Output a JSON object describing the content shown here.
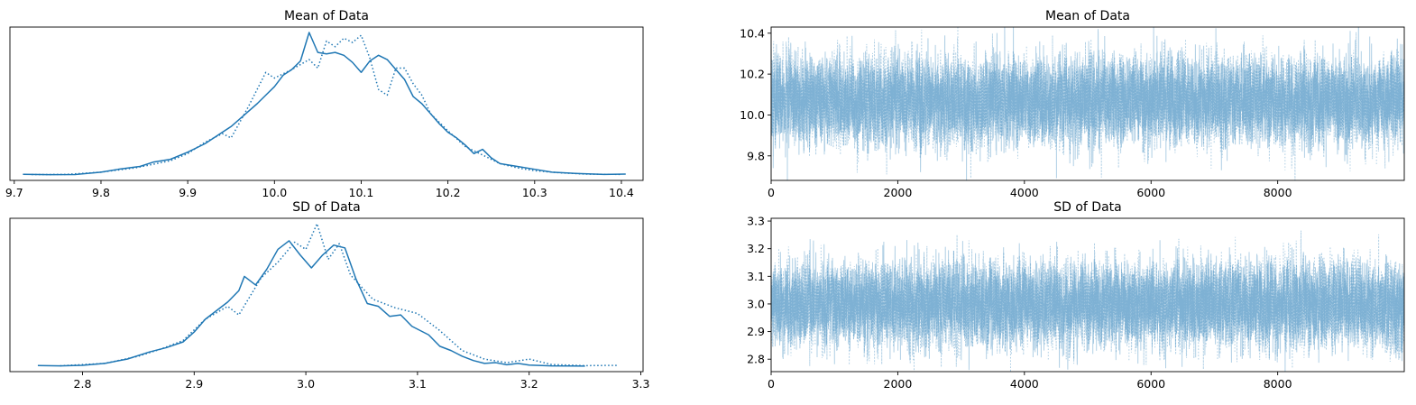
{
  "chart_data": [
    {
      "type": "line",
      "plot": "density",
      "title": "Mean of Data",
      "xlabel": "",
      "ylabel": "",
      "xlim": [
        9.695,
        10.425
      ],
      "xticks": [
        9.7,
        9.8,
        9.9,
        10.0,
        10.1,
        10.2,
        10.3,
        10.4
      ],
      "xtick_labels": [
        "9.7",
        "9.8",
        "9.9",
        "10.0",
        "10.1",
        "10.2",
        "10.3",
        "10.4"
      ],
      "yticks_visible": false,
      "color": "#1f77b4",
      "series": [
        {
          "line_style": "solid",
          "x": [
            9.71,
            9.74,
            9.77,
            9.8,
            9.82,
            9.845,
            9.86,
            9.88,
            9.9,
            9.92,
            9.935,
            9.95,
            9.965,
            9.98,
            9.99,
            10.0,
            10.01,
            10.02,
            10.03,
            10.04,
            10.05,
            10.06,
            10.07,
            10.08,
            10.09,
            10.1,
            10.11,
            10.12,
            10.13,
            10.14,
            10.15,
            10.16,
            10.17,
            10.18,
            10.19,
            10.2,
            10.21,
            10.22,
            10.23,
            10.24,
            10.25,
            10.26,
            10.28,
            10.3,
            10.32,
            10.35,
            10.38,
            10.405
          ],
          "y": [
            0.005,
            0.002,
            0.003,
            0.02,
            0.04,
            0.06,
            0.09,
            0.11,
            0.16,
            0.22,
            0.28,
            0.34,
            0.42,
            0.5,
            0.56,
            0.62,
            0.7,
            0.74,
            0.8,
            1.0,
            0.86,
            0.85,
            0.86,
            0.84,
            0.79,
            0.72,
            0.8,
            0.84,
            0.81,
            0.74,
            0.67,
            0.55,
            0.5,
            0.43,
            0.36,
            0.3,
            0.26,
            0.21,
            0.15,
            0.18,
            0.12,
            0.08,
            0.06,
            0.04,
            0.02,
            0.01,
            0.004,
            0.006
          ]
        },
        {
          "line_style": "dotted",
          "x": [
            9.72,
            9.76,
            9.8,
            9.84,
            9.88,
            9.9,
            9.92,
            9.94,
            9.95,
            9.97,
            9.99,
            10.0,
            10.02,
            10.04,
            10.05,
            10.06,
            10.07,
            10.08,
            10.09,
            10.1,
            10.11,
            10.12,
            10.13,
            10.14,
            10.15,
            10.16,
            10.17,
            10.18,
            10.2,
            10.22,
            10.24,
            10.26,
            10.28,
            10.3,
            10.33,
            10.36,
            10.4
          ],
          "y": [
            0.003,
            0.004,
            0.02,
            0.05,
            0.1,
            0.15,
            0.23,
            0.29,
            0.26,
            0.48,
            0.72,
            0.68,
            0.74,
            0.81,
            0.75,
            0.94,
            0.9,
            0.96,
            0.93,
            0.98,
            0.82,
            0.6,
            0.56,
            0.75,
            0.75,
            0.64,
            0.56,
            0.43,
            0.31,
            0.2,
            0.14,
            0.08,
            0.05,
            0.03,
            0.015,
            0.006,
            0.004
          ]
        }
      ]
    },
    {
      "type": "line",
      "plot": "trace",
      "title": "Mean of Data",
      "xlabel": "",
      "ylabel": "",
      "xlim": [
        0,
        9999
      ],
      "ylim": [
        9.68,
        10.43
      ],
      "xticks": [
        0,
        2000,
        4000,
        6000,
        8000
      ],
      "xtick_labels": [
        "0",
        "2000",
        "4000",
        "6000",
        "8000"
      ],
      "yticks": [
        9.8,
        10.0,
        10.2,
        10.4
      ],
      "ytick_labels": [
        "9.8",
        "10.0",
        "10.2",
        "10.4"
      ],
      "color": "#1f77b4",
      "alpha": 0.35,
      "samples": 10000,
      "series": [
        {
          "line_style": "solid",
          "mean": 10.07,
          "sd": 0.1
        },
        {
          "line_style": "dotted",
          "mean": 10.07,
          "sd": 0.1
        }
      ]
    },
    {
      "type": "line",
      "plot": "density",
      "title": "SD of Data",
      "xlabel": "",
      "ylabel": "",
      "xlim": [
        2.735,
        3.302
      ],
      "xticks": [
        2.8,
        2.9,
        3.0,
        3.1,
        3.2,
        3.3
      ],
      "xtick_labels": [
        "2.8",
        "2.9",
        "3.0",
        "3.1",
        "3.2",
        "3.3"
      ],
      "yticks_visible": false,
      "color": "#1f77b4",
      "series": [
        {
          "line_style": "solid",
          "x": [
            2.76,
            2.78,
            2.8,
            2.82,
            2.84,
            2.86,
            2.875,
            2.89,
            2.9,
            2.91,
            2.92,
            2.93,
            2.94,
            2.945,
            2.955,
            2.965,
            2.975,
            2.985,
            2.995,
            3.005,
            3.015,
            3.025,
            3.035,
            3.045,
            3.055,
            3.065,
            3.075,
            3.085,
            3.095,
            3.11,
            3.12,
            3.13,
            3.14,
            3.15,
            3.16,
            3.17,
            3.18,
            3.19,
            3.2,
            3.22,
            3.25
          ],
          "y": [
            0.005,
            0.002,
            0.006,
            0.02,
            0.05,
            0.1,
            0.13,
            0.17,
            0.24,
            0.33,
            0.39,
            0.45,
            0.53,
            0.63,
            0.57,
            0.68,
            0.82,
            0.88,
            0.78,
            0.69,
            0.78,
            0.85,
            0.83,
            0.61,
            0.44,
            0.42,
            0.35,
            0.36,
            0.28,
            0.22,
            0.14,
            0.11,
            0.07,
            0.04,
            0.02,
            0.025,
            0.01,
            0.02,
            0.008,
            0.002,
            0.001
          ]
        },
        {
          "line_style": "dotted",
          "x": [
            2.78,
            2.82,
            2.85,
            2.87,
            2.89,
            2.91,
            2.93,
            2.94,
            2.96,
            2.975,
            2.99,
            3.0,
            3.01,
            3.02,
            3.03,
            3.04,
            3.06,
            3.08,
            3.1,
            3.12,
            3.14,
            3.16,
            3.18,
            3.2,
            3.22,
            3.25,
            3.28
          ],
          "y": [
            0.003,
            0.02,
            0.07,
            0.12,
            0.18,
            0.33,
            0.42,
            0.36,
            0.62,
            0.73,
            0.87,
            0.82,
            1.0,
            0.75,
            0.86,
            0.64,
            0.47,
            0.41,
            0.37,
            0.25,
            0.11,
            0.05,
            0.025,
            0.05,
            0.012,
            0.004,
            0.006
          ]
        }
      ]
    },
    {
      "type": "line",
      "plot": "trace",
      "title": "SD of Data",
      "xlabel": "",
      "ylabel": "",
      "xlim": [
        0,
        9999
      ],
      "ylim": [
        2.755,
        3.31
      ],
      "xticks": [
        0,
        2000,
        4000,
        6000,
        8000
      ],
      "xtick_labels": [
        "0",
        "2000",
        "4000",
        "6000",
        "8000"
      ],
      "yticks": [
        2.8,
        2.9,
        3.0,
        3.1,
        3.2,
        3.3
      ],
      "ytick_labels": [
        "2.8",
        "2.9",
        "3.0",
        "3.1",
        "3.2",
        "3.3"
      ],
      "color": "#1f77b4",
      "alpha": 0.35,
      "samples": 10000,
      "series": [
        {
          "line_style": "solid",
          "mean": 3.0,
          "sd": 0.072
        },
        {
          "line_style": "dotted",
          "mean": 3.0,
          "sd": 0.072
        }
      ]
    }
  ]
}
